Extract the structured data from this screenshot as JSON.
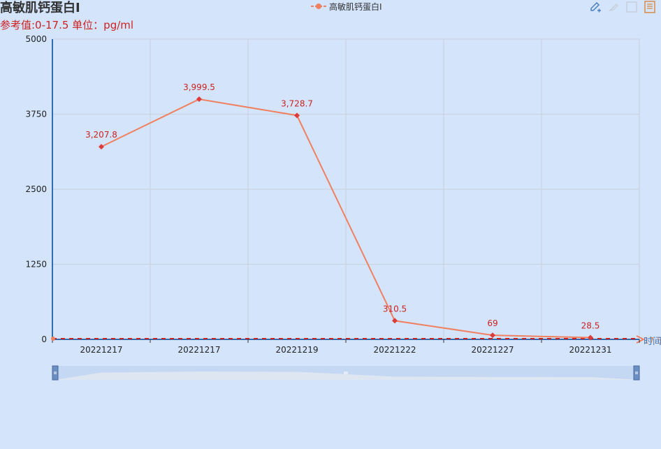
{
  "chart_data": {
    "type": "line",
    "title": "高敏肌钙蛋白I",
    "subtitle": "参考值:0-17.5  单位：pg/ml",
    "legend": [
      "高敏肌钙蛋白I"
    ],
    "categories": [
      "20221217",
      "20221217",
      "20221219",
      "20221222",
      "20221227",
      "20221231"
    ],
    "series": [
      {
        "name": "高敏肌钙蛋白I",
        "values": [
          3207.8,
          3999.5,
          3728.7,
          310.5,
          69,
          28.5
        ],
        "labels": [
          "3,207.8",
          "3,999.5",
          "3,728.7",
          "310.5",
          "69",
          "28.5"
        ],
        "color": "#f08060",
        "marker_color": "#dd3b3b"
      }
    ],
    "ylim": [
      0,
      5000
    ],
    "yticks": [
      0,
      1250,
      2500,
      3750,
      5000
    ],
    "ytick_labels": [
      "0",
      "1250",
      "2500",
      "3750",
      "5000"
    ],
    "xlabel": "时间",
    "markline_label": "17.5",
    "grid": true,
    "legend_position": "top-center",
    "colors": {
      "background": "#d3e4fb",
      "axis": "#2f6db5",
      "grid": "#c8d0dc",
      "label": "#cc2222",
      "reference_dash": "#cc2222"
    }
  },
  "toolbox": {
    "icons": [
      "edit-icon",
      "brush-icon",
      "restore-icon",
      "data-view-icon"
    ]
  }
}
